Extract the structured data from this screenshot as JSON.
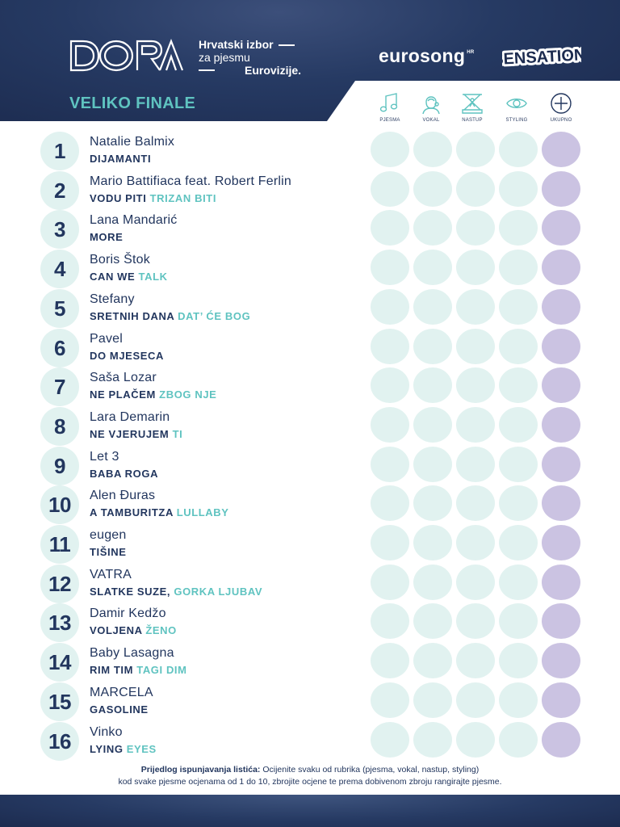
{
  "header": {
    "logo_text": "DORA",
    "tagline": [
      "Hrvatski izbor",
      "za pjesmu",
      "Eurovizije."
    ],
    "eurosong_text": "eurosong",
    "eurosong_sup": "HR",
    "sensation_text": "SENSATION!",
    "section_title": "VELIKO FINALE"
  },
  "criteria": [
    {
      "label": "PJESMA",
      "icon": "music-note-icon"
    },
    {
      "label": "VOKAL",
      "icon": "singer-icon"
    },
    {
      "label": "NASTUP",
      "icon": "stage-icon"
    },
    {
      "label": "STYLING",
      "icon": "eye-icon"
    },
    {
      "label": "UKUPNO",
      "icon": "plus-circle-icon"
    }
  ],
  "entries": [
    {
      "num": "1",
      "artist": "Natalie Balmix",
      "song_a": "DIJAMANTI",
      "song_b": ""
    },
    {
      "num": "2",
      "artist": "Mario Battifiaca feat. Robert Ferlin",
      "song_a": "VODU PITI",
      "song_b": " TRIZAN BITI"
    },
    {
      "num": "3",
      "artist": "Lana Mandarić",
      "song_a": "MORE",
      "song_b": ""
    },
    {
      "num": "4",
      "artist": "Boris Štok",
      "song_a": "CAN WE",
      "song_b": " TALK"
    },
    {
      "num": "5",
      "artist": "Stefany",
      "song_a": "SRETNIH DANA",
      "song_b": " DAT’ ĆE BOG"
    },
    {
      "num": "6",
      "artist": "Pavel",
      "song_a": "DO MJESECA",
      "song_b": ""
    },
    {
      "num": "7",
      "artist": "Saša Lozar",
      "song_a": "NE PLAČEM",
      "song_b": " ZBOG NJE"
    },
    {
      "num": "8",
      "artist": "Lara Demarin",
      "song_a": "NE VJERUJEM",
      "song_b": " TI"
    },
    {
      "num": "9",
      "artist": "Let 3",
      "song_a": "BABA ROGA",
      "song_b": ""
    },
    {
      "num": "10",
      "artist": "Alen Đuras",
      "song_a": "A TAMBURITZA",
      "song_b": " LULLABY"
    },
    {
      "num": "11",
      "artist": "eugen",
      "song_a": "TIŠINE",
      "song_b": ""
    },
    {
      "num": "12",
      "artist": "VATRA",
      "song_a": "SLATKE SUZE,",
      "song_b": " GORKA LJUBAV"
    },
    {
      "num": "13",
      "artist": "Damir Kedžo",
      "song_a": "VOLJENA",
      "song_b": " ŽENO"
    },
    {
      "num": "14",
      "artist": "Baby Lasagna",
      "song_a": "RIM TIM",
      "song_b": " TAGI DIM"
    },
    {
      "num": "15",
      "artist": "MARCELA",
      "song_a": "GASOLINE",
      "song_b": ""
    },
    {
      "num": "16",
      "artist": "Vinko",
      "song_a": "LYING",
      "song_b": " EYES"
    }
  ],
  "footnote": {
    "lead": "Prijedlog ispunjavanja listića:",
    "line1": " Ocijenite svaku od rubrika (pjesma, vokal, nastup, styling)",
    "line2": "kod svake pjesme ocjenama od 1 do 10, zbrojite ocjene te prema dobivenom zbroju rangirajte pjesme."
  },
  "colors": {
    "navy": "#22365e",
    "teal": "#5fc3c0",
    "score_circle": "#e1f2f0",
    "total_circle": "#cbc3e2"
  }
}
